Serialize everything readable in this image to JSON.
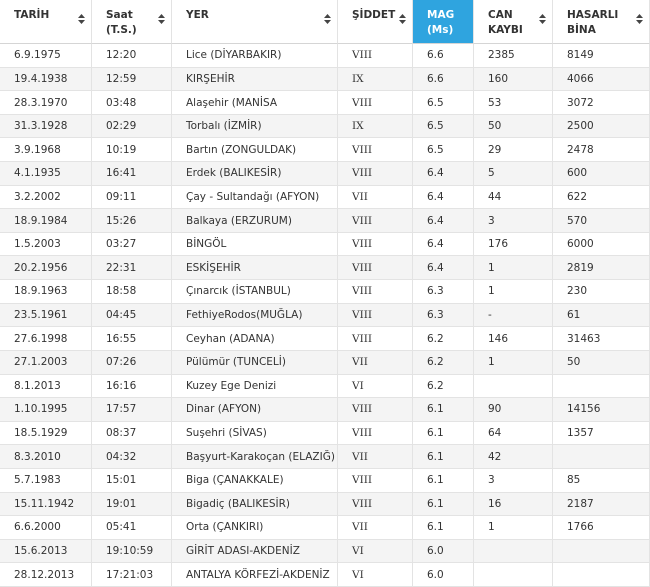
{
  "table": {
    "headers": [
      [
        "TARİH"
      ],
      [
        "Saat (T.S.)"
      ],
      [
        "YER"
      ],
      [
        "ŞİDDET"
      ],
      [
        "MAG",
        "(Ms)"
      ],
      [
        "CAN",
        "KAYBI"
      ],
      [
        "HASARLI",
        "BİNA"
      ]
    ],
    "rows": [
      [
        "6.9.1975",
        "12:20",
        "Lice (DİYARBAKIR)",
        "VIII",
        "6.6",
        "2385",
        "8149"
      ],
      [
        "19.4.1938",
        "12:59",
        "KIRŞEHİR",
        "IX",
        "6.6",
        "160",
        "4066"
      ],
      [
        "28.3.1970",
        "03:48",
        "Alaşehir (MANİSA",
        "VIII",
        "6.5",
        "53",
        "3072"
      ],
      [
        "31.3.1928",
        "02:29",
        "Torbalı  (İZMİR)",
        "IX",
        "6.5",
        "50",
        "2500"
      ],
      [
        "3.9.1968",
        "10:19",
        "Bartın (ZONGULDAK)",
        "VIII",
        "6.5",
        "29",
        "2478"
      ],
      [
        "4.1.1935",
        "16:41",
        "Erdek  (BALIKESİR)",
        "VIII",
        "6.4",
        "5",
        "600"
      ],
      [
        "3.2.2002",
        "09:11",
        "Çay - Sultandağı (AFYON)",
        "VII",
        "6.4",
        "44",
        "622"
      ],
      [
        "18.9.1984",
        "15:26",
        "Balkaya (ERZURUM)",
        "VIII",
        "6.4",
        "3",
        "570"
      ],
      [
        "1.5.2003",
        "03:27",
        "BİNGÖL",
        "VIII",
        "6.4",
        "176",
        "6000"
      ],
      [
        "20.2.1956",
        "22:31",
        "ESKİŞEHİR",
        "VIII",
        "6.4",
        "1",
        "2819"
      ],
      [
        "18.9.1963",
        "18:58",
        "Çınarcık (İSTANBUL)",
        "VIII",
        "6.3",
        "1",
        "230"
      ],
      [
        "23.5.1961",
        "04:45",
        "FethiyeRodos(MUĞLA)",
        "VIII",
        "6.3",
        "-",
        "61"
      ],
      [
        "27.6.1998",
        "16:55",
        "Ceyhan (ADANA)",
        "VIII",
        "6.2",
        "146",
        "31463"
      ],
      [
        "27.1.2003",
        "07:26",
        "Pülümür (TUNCELİ)",
        "VII",
        "6.2",
        "1",
        "50"
      ],
      [
        "8.1.2013",
        "16:16",
        "Kuzey Ege Denizi",
        "VI",
        "6.2",
        null,
        null
      ],
      [
        "1.10.1995",
        "17:57",
        "Dinar (AFYON)",
        "VIII",
        "6.1",
        "90",
        "14156"
      ],
      [
        "18.5.1929",
        "08:37",
        "Suşehri  (SİVAS)",
        "VIII",
        "6.1",
        "64",
        "1357"
      ],
      [
        "8.3.2010",
        "04:32",
        "Başyurt-Karakoçan (ELAZIĞ)",
        "VII",
        "6.1",
        "42",
        null
      ],
      [
        "5.7.1983",
        "15:01",
        "Biga (ÇANAKKALE)",
        "VIII",
        "6.1",
        "3",
        "85"
      ],
      [
        "15.11.1942",
        "19:01",
        "Bigadiç  (BALIKESİR)",
        "VIII",
        "6.1",
        "16",
        "2187"
      ],
      [
        "6.6.2000",
        "05:41",
        "Orta (ÇANKIRI)",
        "VII",
        "6.1",
        "1",
        "1766"
      ],
      [
        "15.6.2013",
        "19:10:59",
        "GİRİT ADASI-AKDENİZ",
        "VI",
        "6.0",
        null,
        null
      ],
      [
        "28.12.2013",
        "17:21:03",
        "ANTALYA KÖRFEZİ-AKDENİZ",
        "VI",
        "6.0",
        null,
        null
      ]
    ]
  }
}
